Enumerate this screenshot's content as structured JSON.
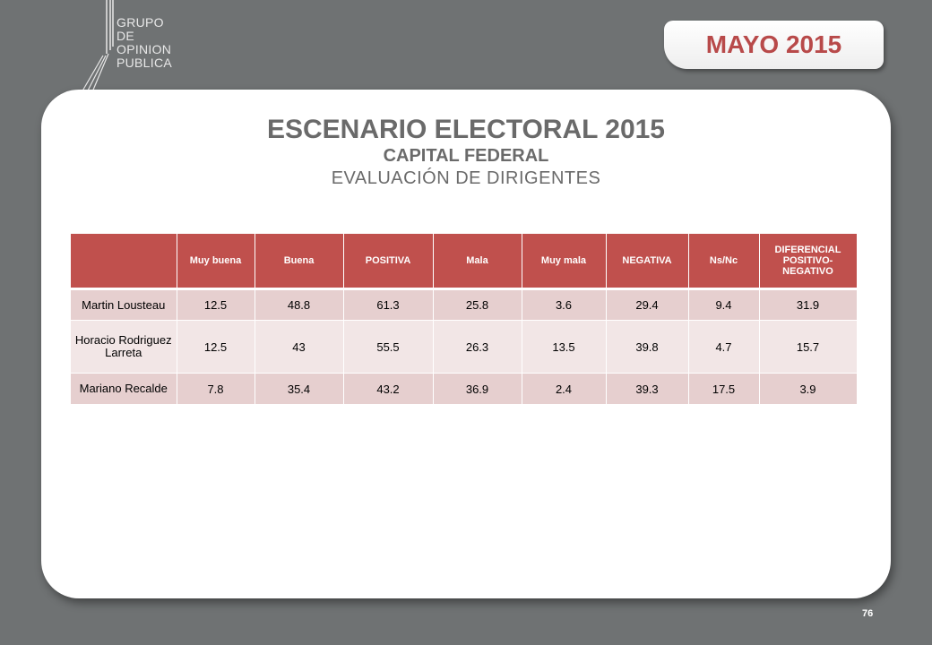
{
  "logo": {
    "lines": [
      "GRUPO",
      "DE",
      "OPINION",
      "PUBLICA"
    ]
  },
  "badge": "MAYO 2015",
  "titles": {
    "main": "ESCENARIO ELECTORAL 2015",
    "sub": "CAPITAL FEDERAL",
    "sub2": "EVALUACIÓN DE DIRIGENTES"
  },
  "table": {
    "headers": [
      "",
      "Muy buena",
      "Buena",
      "POSITIVA",
      "Mala",
      "Muy mala",
      "NEGATIVA",
      "Ns/Nc",
      "DIFERENCIAL POSITIVO-NEGATIVO"
    ],
    "rows": [
      [
        "Martin Lousteau",
        "12.5",
        "48.8",
        "61.3",
        "25.8",
        "3.6",
        "29.4",
        "9.4",
        "31.9"
      ],
      [
        "Horacio Rodriguez Larreta",
        "12.5",
        "43",
        "55.5",
        "26.3",
        "13.5",
        "39.8",
        "4.7",
        "15.7"
      ],
      [
        "Mariano Recalde",
        "7.8",
        "35.4",
        "43.2",
        "36.9",
        "2.4",
        "39.3",
        "17.5",
        "3.9"
      ]
    ]
  },
  "page_number": "76",
  "colors": {
    "header_bg": "#c0504d",
    "row_dark": "#e6cfcf",
    "row_light": "#f2e6e6",
    "badge_text": "#b84a4a",
    "background": "#6f7273"
  }
}
